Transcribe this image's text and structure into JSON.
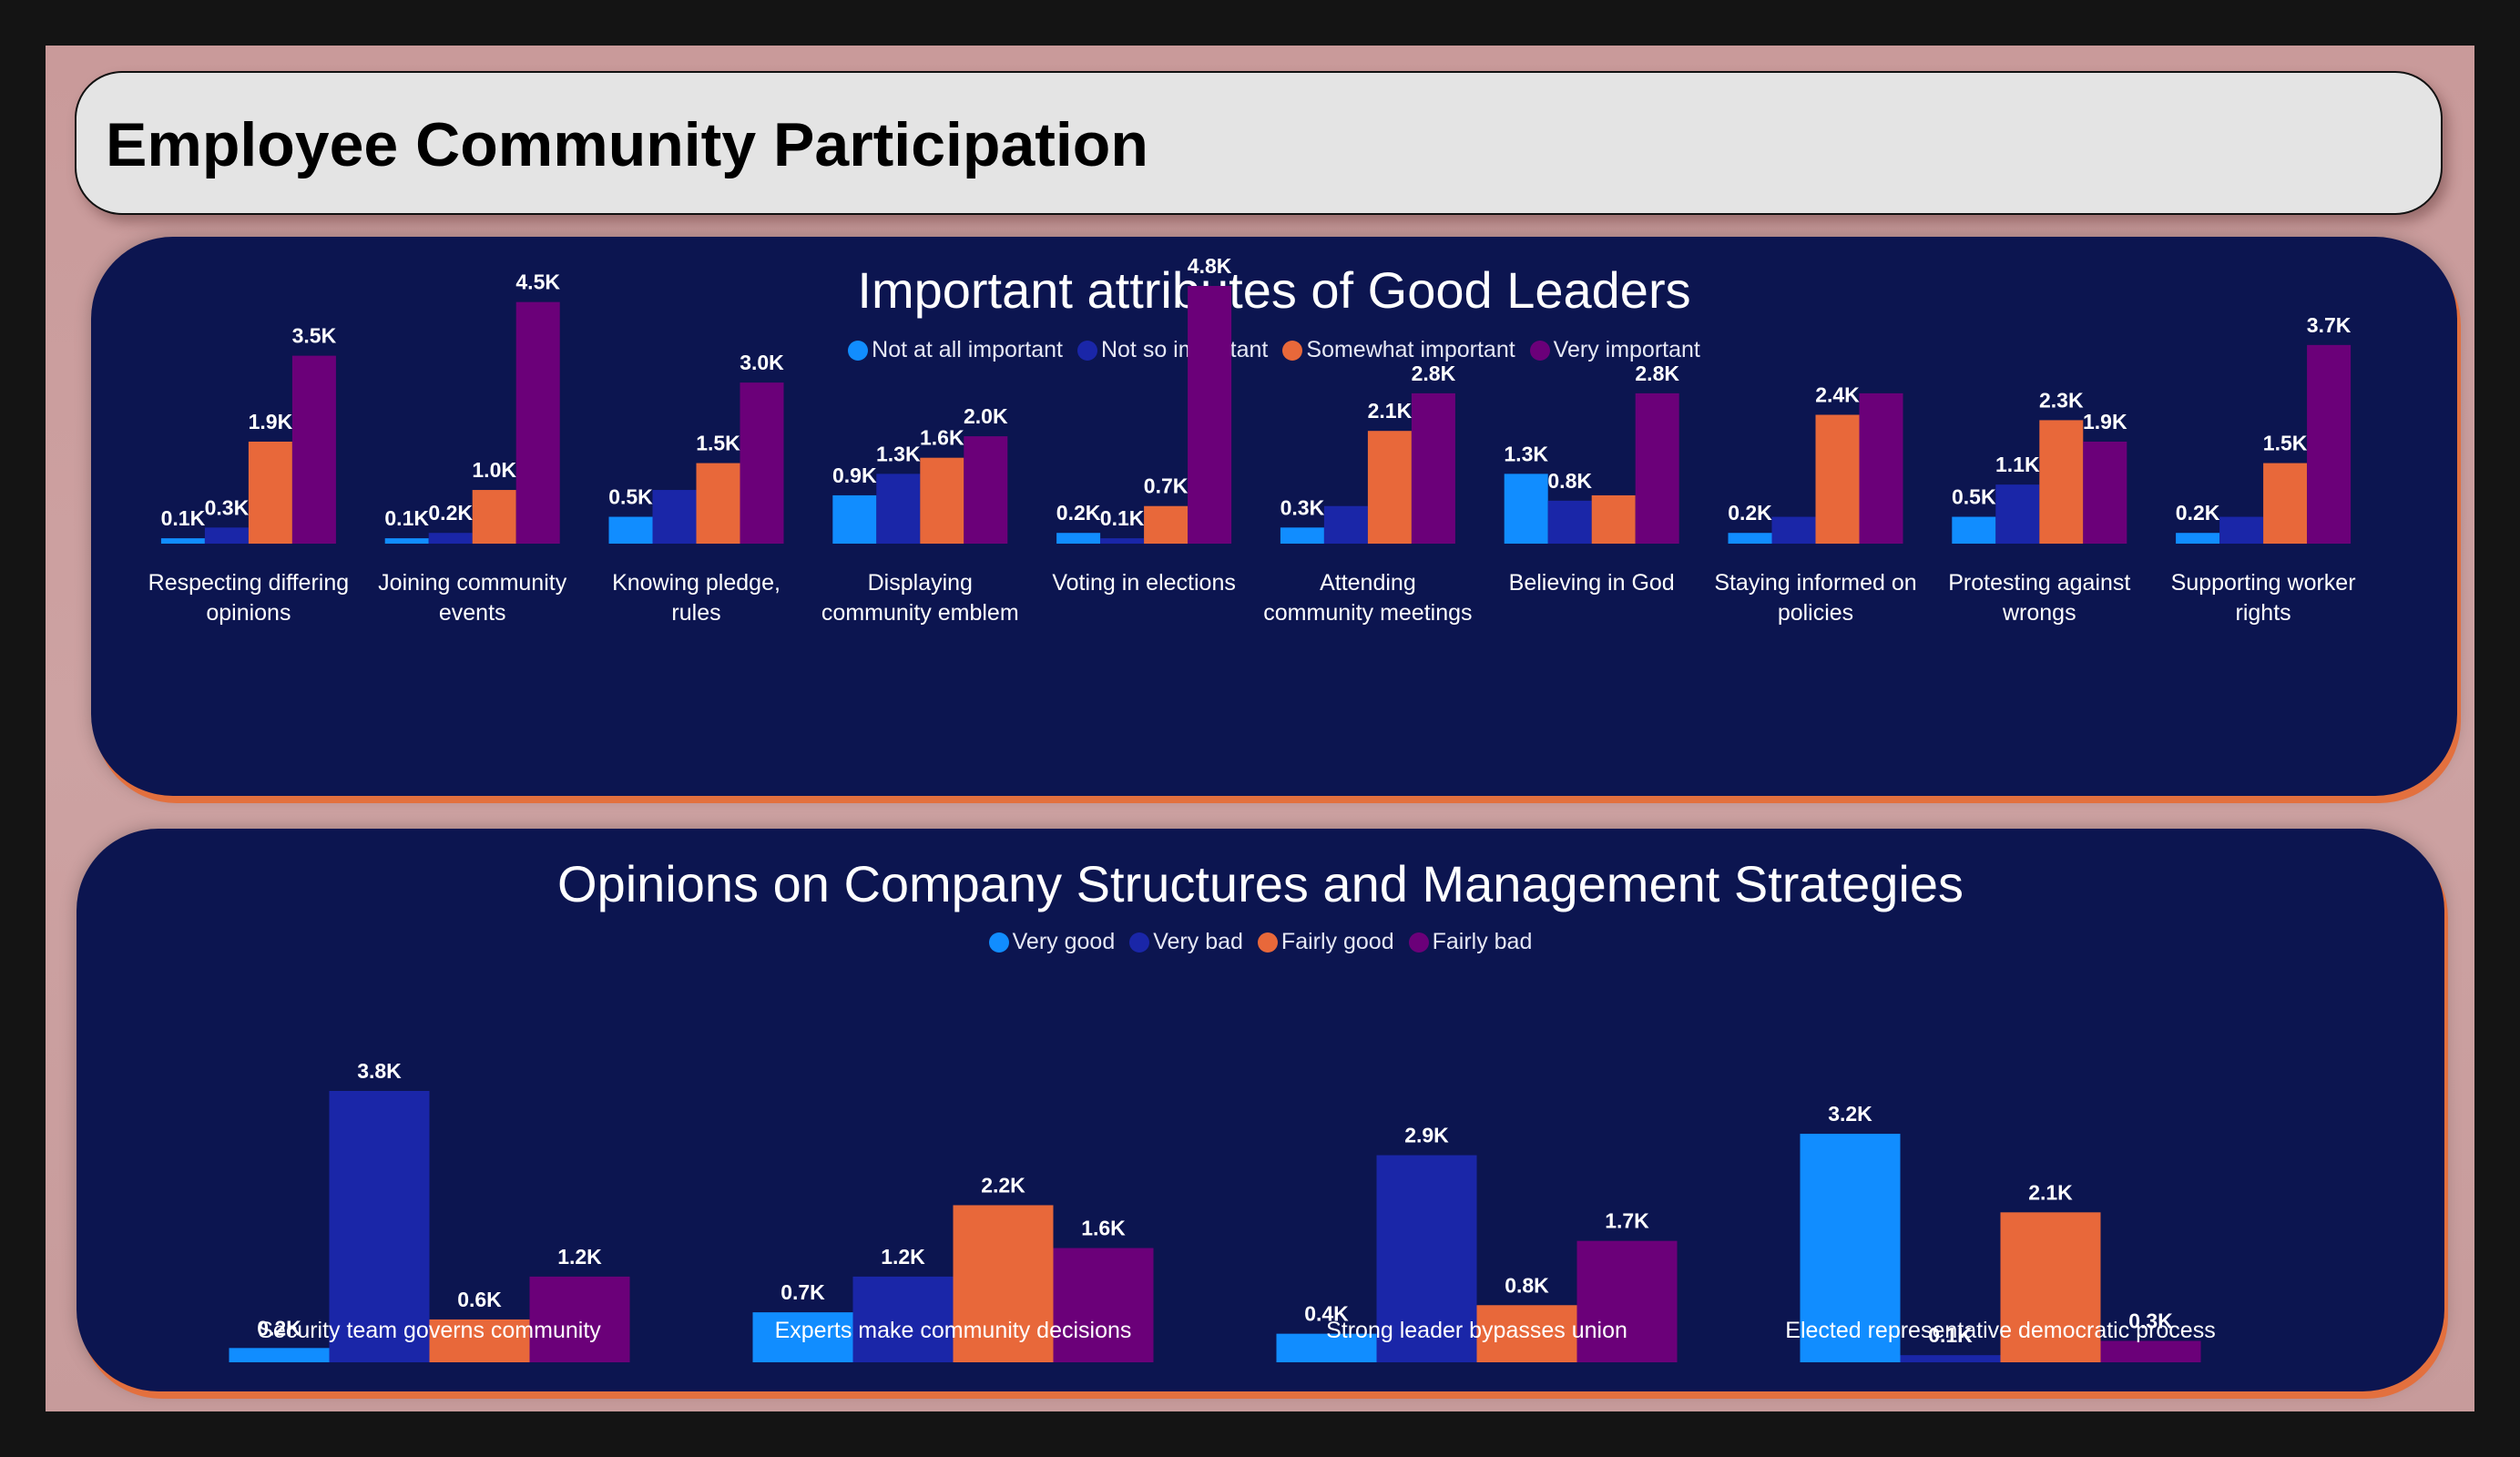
{
  "page": {
    "title": "Employee Community Participation"
  },
  "chart_data": [
    {
      "type": "bar",
      "title": "Important attributes of Good Leaders",
      "categories": [
        [
          "Respecting differing",
          "opinions"
        ],
        [
          "Joining community",
          "events"
        ],
        [
          "Knowing pledge,",
          "rules"
        ],
        [
          "Displaying",
          "community emblem"
        ],
        [
          "Voting in elections"
        ],
        [
          "Attending",
          "community meetings"
        ],
        [
          "Believing in God"
        ],
        [
          "Staying informed on",
          "policies"
        ],
        [
          "Protesting against",
          "wrongs"
        ],
        [
          "Supporting worker",
          "rights"
        ]
      ],
      "series": [
        {
          "name": "Not at all important",
          "color": "#118dff",
          "values": [
            0.1,
            0.1,
            0.5,
            0.9,
            0.2,
            0.3,
            1.3,
            0.2,
            0.5,
            0.2
          ]
        },
        {
          "name": "Not so important",
          "color": "#1a26a8",
          "values": [
            0.3,
            0.2,
            1.0,
            1.3,
            0.1,
            0.7,
            0.8,
            0.5,
            1.1,
            0.5
          ]
        },
        {
          "name": "Somewhat important",
          "color": "#e8683a",
          "values": [
            1.9,
            1.0,
            1.5,
            1.6,
            0.7,
            2.1,
            0.9,
            2.4,
            2.3,
            1.5
          ]
        },
        {
          "name": "Very important",
          "color": "#6b0079",
          "values": [
            3.5,
            4.5,
            3.0,
            2.0,
            4.8,
            2.8,
            2.8,
            2.8,
            1.9,
            3.7
          ]
        }
      ],
      "data_labels": [
        [
          "0.1K",
          "0.3K",
          "1.9K",
          "3.5K"
        ],
        [
          "0.1K",
          "0.2K",
          "1.0K",
          "4.5K"
        ],
        [
          "0.5K",
          "",
          "1.5K",
          "3.0K"
        ],
        [
          "0.9K",
          "1.3K",
          "1.6K",
          "2.0K"
        ],
        [
          "0.2K",
          "0.1K",
          "0.7K",
          "4.8K"
        ],
        [
          "0.3K",
          "",
          "2.1K",
          "2.8K"
        ],
        [
          "1.3K",
          "0.8K",
          "",
          "2.8K"
        ],
        [
          "0.2K",
          "",
          "2.4K",
          ""
        ],
        [
          "0.5K",
          "1.1K",
          "2.3K",
          "1.9K"
        ],
        [
          "0.2K",
          "",
          "1.5K",
          "3.7K"
        ]
      ],
      "unit": "K",
      "ylim": [
        0,
        5
      ],
      "legend_position": "top-center",
      "grid": false
    },
    {
      "type": "bar",
      "title": "Opinions on Company Structures and Management Strategies",
      "categories": [
        [
          "Security team governs community"
        ],
        [
          "Experts make community decisions"
        ],
        [
          "Strong leader bypasses union"
        ],
        [
          "Elected representative democratic process"
        ]
      ],
      "series": [
        {
          "name": "Very good",
          "color": "#118dff",
          "values": [
            0.2,
            0.7,
            0.4,
            3.2
          ]
        },
        {
          "name": "Very bad",
          "color": "#1a26a8",
          "values": [
            3.8,
            1.2,
            2.9,
            0.1
          ]
        },
        {
          "name": "Fairly good",
          "color": "#e8683a",
          "values": [
            0.6,
            2.2,
            0.8,
            2.1
          ]
        },
        {
          "name": "Fairly bad",
          "color": "#6b0079",
          "values": [
            1.2,
            1.6,
            1.7,
            0.3
          ]
        }
      ],
      "data_labels": [
        [
          "0.2K",
          "3.8K",
          "0.6K",
          "1.2K"
        ],
        [
          "0.7K",
          "1.2K",
          "2.2K",
          "1.6K"
        ],
        [
          "0.4K",
          "2.9K",
          "0.8K",
          "1.7K"
        ],
        [
          "3.2K",
          "0.1K",
          "2.1K",
          "0.3K"
        ]
      ],
      "unit": "K",
      "ylim": [
        0,
        4
      ],
      "legend_position": "top-center",
      "grid": false
    }
  ]
}
